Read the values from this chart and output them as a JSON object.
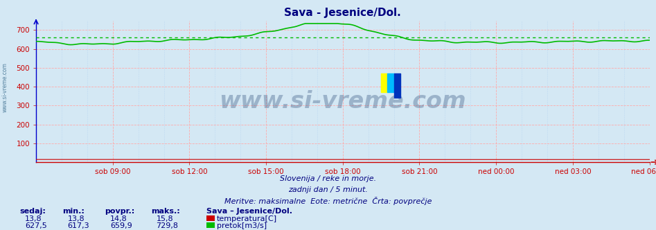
{
  "title": "Sava - Jesenice/Dol.",
  "bg_color": "#d4e8f4",
  "plot_bg_color": "#d4e8f4",
  "ylim": [
    0,
    750
  ],
  "yticks": [
    100,
    200,
    300,
    400,
    500,
    600,
    700
  ],
  "xtick_labels": [
    "sob 09:00",
    "sob 12:00",
    "sob 15:00",
    "sob 18:00",
    "sob 21:00",
    "ned 00:00",
    "ned 03:00",
    "ned 06:00"
  ],
  "flow_color": "#00bb00",
  "temp_color": "#cc0000",
  "avg_flow": 659.9,
  "avg_temp": 14.8,
  "min_flow": 617.3,
  "max_flow": 729.8,
  "cur_flow": 627.5,
  "min_temp": 13.8,
  "max_temp": 15.8,
  "cur_temp": 13.8,
  "subtitle1": "Slovenija / reke in morje.",
  "subtitle2": "zadnji dan / 5 minut.",
  "subtitle3": "Meritve: maksimalne  Eote: metrične  Črta: povprečje",
  "footer_label_sedaj": "sedaj:",
  "footer_label_min": "min.:",
  "footer_label_povpr": "povpr.:",
  "footer_label_maks": "maks.:",
  "footer_station": "Sava – Jesenice/Dol.",
  "footer_temp_label": "temperatura[C]",
  "footer_flow_label": "pretok[m3/s]",
  "watermark": "www.si-vreme.com",
  "watermark_color": "#1a3a6a",
  "n_points": 288,
  "title_color": "#000080",
  "axis_label_color": "#000080",
  "footer_color": "#000080",
  "tick_color": "#cc0000",
  "grid_red": "#ffaaaa",
  "grid_blue": "#aaccee"
}
